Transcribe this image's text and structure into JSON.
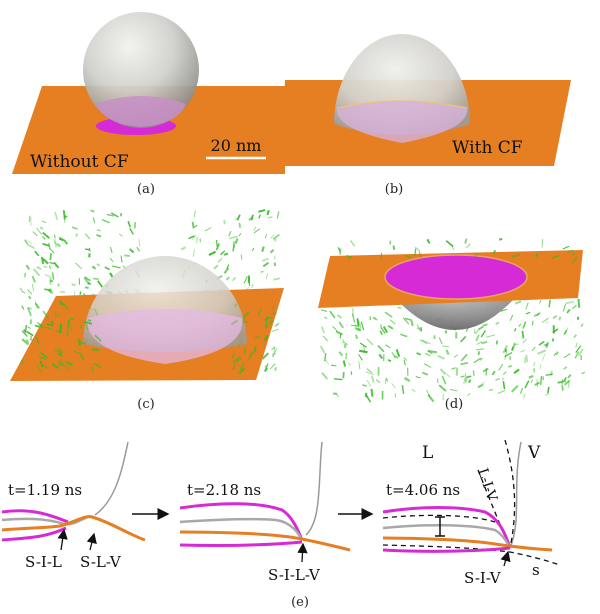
{
  "panels": {
    "a": {
      "caption": "(a)",
      "label": "Without CF",
      "scalebar": "20 nm"
    },
    "b": {
      "caption": "(b)",
      "label": "With CF"
    },
    "c": {
      "caption": "(c)"
    },
    "d": {
      "caption": "(d)"
    },
    "e": {
      "caption": "(e)",
      "frames": [
        {
          "time": "t=1.19 ns",
          "markers": [
            "S-I-L",
            "S-L-V"
          ]
        },
        {
          "time": "t=2.18 ns",
          "markers": [
            "S-I-L-V"
          ]
        },
        {
          "time": "t=4.06 ns",
          "markers": [
            "S-I-V"
          ],
          "region_labels": [
            "L",
            "V",
            "L-I-V",
            "s"
          ]
        }
      ]
    }
  },
  "colors": {
    "substrate": "#e67e22",
    "droplet": "#c9c9c6",
    "contact": "#d62ad6",
    "flow": "#33bb22",
    "interface_gray": "#9a9a9a"
  }
}
